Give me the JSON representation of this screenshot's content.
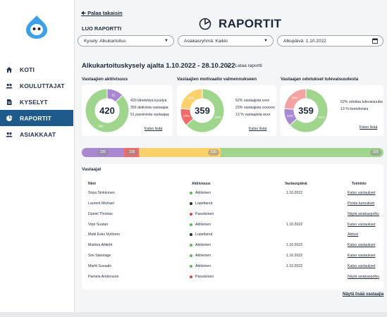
{
  "nav": {
    "items": [
      {
        "label": "KOTI",
        "icon": "home-icon"
      },
      {
        "label": "KOULUTTAJAT",
        "icon": "people-icon"
      },
      {
        "label": "KYSELYT",
        "icon": "document-icon"
      },
      {
        "label": "RAPORTIT",
        "icon": "pie-chart-icon"
      },
      {
        "label": "ASIAKKAAT",
        "icon": "people-icon"
      }
    ],
    "active": "RAPORTIT"
  },
  "header": {
    "back_label": "Palaa takaisin",
    "section_label": "LUO RAPORTTI",
    "title": "RAPORTIT"
  },
  "filters": {
    "survey": "Kysely: Alkukartoitus",
    "group": "Asiakasryhmä: Kaikki",
    "date": "Alkupäivä: 1.10.2022"
  },
  "report": {
    "subtitle": "Alkukartoituskysely ajalta 1.10.2022 - 28.10.2022",
    "download_label": "Lataa raportti"
  },
  "cards": [
    {
      "title": "Vastaajien aktiivisuus",
      "center": "420",
      "slices": [
        {
          "value": 51,
          "label": "51",
          "color": "#a987d1"
        },
        {
          "value": 359,
          "label": "359",
          "color": "#9fd58c"
        }
      ],
      "legend": [
        "420 lähetettyä kyselyä",
        "359 aktiivista vastaajaa",
        "51 passiivista vastaajaa"
      ],
      "link": "Katso lisää"
    },
    {
      "title": "Vastaajien motivaatio valmennukseen",
      "center": "359",
      "slices": [
        {
          "value": 62,
          "label": "62%",
          "color": "#9fd58c"
        },
        {
          "value": 13,
          "label": "13%",
          "color": "#f26b6b"
        },
        {
          "value": 23,
          "label": "23%",
          "color": "#fcd06a"
        }
      ],
      "legend": [
        "62% vastaajista xxxx",
        "23% vastaajista xxxxxxx",
        "13 % vastaajista xxxx"
      ],
      "link": "Katso lisää"
    },
    {
      "title": "Vastaajan odotukset tulevaisuudesta",
      "center": "359",
      "slices": [
        {
          "value": 62,
          "label": "62%",
          "color": "#9fd58c"
        },
        {
          "value": 13,
          "label": "13%",
          "color": "#a987d1"
        },
        {
          "value": 23,
          "label": "23%",
          "color": "#f4a3a3"
        }
      ],
      "legend": [
        "62% odottaa tulevaisuutta",
        "13 % itsetuhoisia"
      ],
      "link": "Katso lisää"
    }
  ],
  "progress": {
    "segments": [
      {
        "label": "235",
        "share": 0.14,
        "color": "#a987d1"
      },
      {
        "label": "235",
        "share": 0.05,
        "color": "#f26b6b"
      },
      {
        "label": "235",
        "share": 0.27,
        "color": "#fcd06a"
      },
      {
        "label": "235",
        "share": 0.54,
        "color": "#9fd58c"
      }
    ]
  },
  "table": {
    "title": "Vastaajat",
    "headers": [
      "Nimi",
      "Aktiivisuus",
      "Vastauspäivä",
      "Toiminto"
    ],
    "rows": [
      {
        "name": "Sirpa Sinkkonen",
        "status": "Aktiivinen",
        "status_color": "#5cb85c",
        "date": "1.10.2022",
        "action": "Katso vastaukset"
      },
      {
        "name": "Laurent Michael",
        "status": "Lopettanut",
        "status_color": "#1f2a3a",
        "date": "",
        "action": "Poista tunnukset"
      },
      {
        "name": "Daniel Thomas",
        "status": "Passiivinen",
        "status_color": "#e04848",
        "date": "",
        "action": "Näytä asiakaspolku"
      },
      {
        "name": "Virpi Suutari",
        "status": "Aktiivinen",
        "status_color": "#5cb85c",
        "date": "1.10.2022",
        "action": "Katso vastaukset"
      },
      {
        "name": "Matti Esko Hytönen",
        "status": "Lopettanut",
        "status_color": "#1f2a3a",
        "date": "",
        "action": "Aktivoi"
      },
      {
        "name": "Martina Attileht",
        "status": "Aktiivinen",
        "status_color": "#5cb85c",
        "date": "1.10.2022",
        "action": "Katso vastaukset"
      },
      {
        "name": "Sini Sabotage",
        "status": "Aktiivinen",
        "status_color": "#5cb85c",
        "date": "1.10.2022",
        "action": "Katso vastaukset"
      },
      {
        "name": "Martti Suvaalo",
        "status": "Aktiivinen",
        "status_color": "#5cb85c",
        "date": "1.10.2022",
        "action": "Katso vastaukset"
      },
      {
        "name": "Pamela Andersson",
        "status": "Passiivinen",
        "status_color": "#e04848",
        "date": "",
        "action": "Näytä asiakaspolku"
      }
    ],
    "more_label": "Näytä lisää vastaajia"
  }
}
